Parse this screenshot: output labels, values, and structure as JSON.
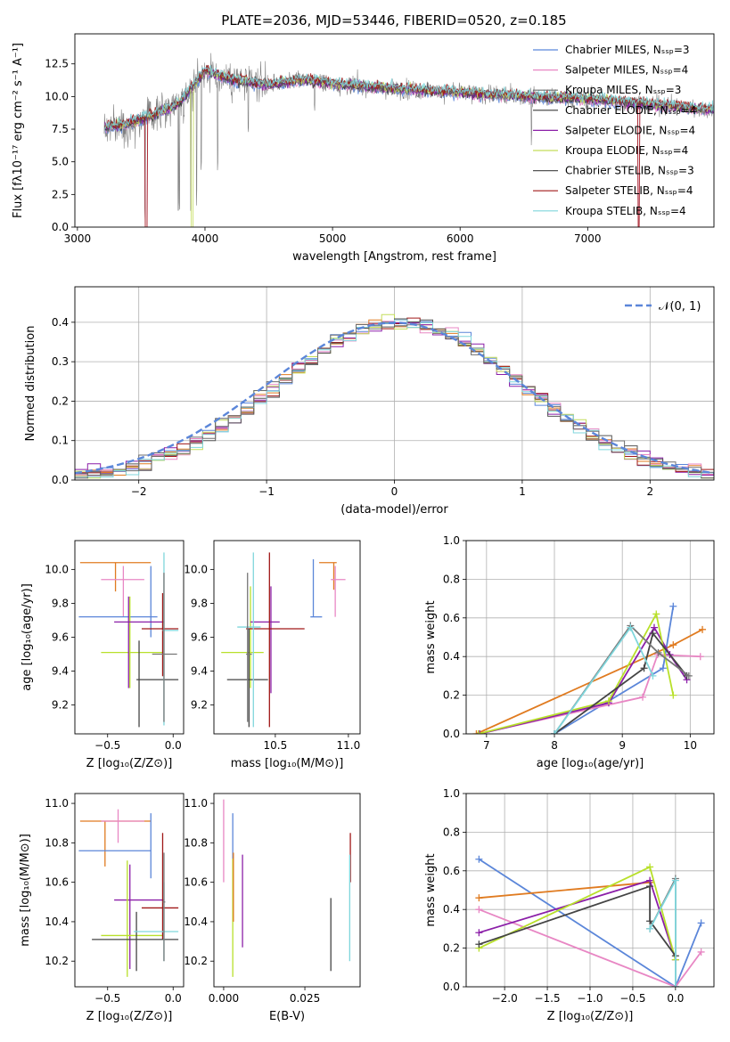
{
  "figure": {
    "title": "PLATE=2036, MJD=53446, FIBERID=0520, z=0.185"
  },
  "colors": {
    "s0": "#5b86d9",
    "s1": "#e887c4",
    "s2": "#6f6f6f",
    "s3": "#3a3a3a",
    "s4": "#8b1fa8",
    "s5": "#c4dd5a",
    "s6": "#555555",
    "s7": "#a01818",
    "s8": "#7fd6dc",
    "orange": "#e07b20",
    "blue": "#5b86d9",
    "pink": "#e887c4",
    "purple": "#8b1fa8",
    "lime": "#b8e02a",
    "cyan": "#7fd6dc",
    "dark": "#444444",
    "red": "#a01818",
    "grey": "#777777"
  },
  "chart_data": [
    {
      "id": "spectrum",
      "type": "line",
      "title": "PLATE=2036, MJD=53446, FIBERID=0520, z=0.185",
      "xlabel": "wavelength [Angstrom, rest frame]",
      "ylabel": "Flux [fλ10⁻¹⁷ erg cm⁻² s⁻¹ A⁻¹]",
      "xlim": [
        2980,
        7990
      ],
      "ylim": [
        0,
        14.8
      ],
      "xticks": [
        3000,
        4000,
        5000,
        6000,
        7000
      ],
      "yticks": [
        0.0,
        2.5,
        5.0,
        7.5,
        10.0,
        12.5
      ],
      "legend_position": "upper-right",
      "legend": [
        "Chabrier MILES, Nₛₛₚ=3",
        "Salpeter MILES, Nₛₛₚ=4",
        "Kroupa MILES, Nₛₛₚ=3",
        "Chabrier ELODIE, Nₛₛₚ=4",
        "Salpeter ELODIE, Nₛₛₚ=4",
        "Kroupa ELODIE, Nₛₛₚ=4",
        "Chabrier STELIB, Nₛₛₚ=3",
        "Salpeter STELIB, Nₛₛₚ=4",
        "Kroupa STELIB, Nₛₛₚ=4"
      ],
      "wavelength_range": [
        3210,
        7985
      ],
      "continuum": [
        [
          3210,
          7.6
        ],
        [
          3400,
          7.9
        ],
        [
          3600,
          8.6
        ],
        [
          3800,
          9.5
        ],
        [
          4000,
          12.0
        ],
        [
          4200,
          11.3
        ],
        [
          4500,
          10.9
        ],
        [
          4800,
          11.3
        ],
        [
          5000,
          11.0
        ],
        [
          5500,
          10.6
        ],
        [
          6000,
          10.3
        ],
        [
          6500,
          10.0
        ],
        [
          7000,
          9.8
        ],
        [
          7500,
          9.4
        ],
        [
          7985,
          9.0
        ]
      ]
    },
    {
      "id": "residuals",
      "type": "histogram",
      "xlabel": "(data-model)/error",
      "ylabel": "Normed distribution",
      "xlim": [
        -2.5,
        2.5
      ],
      "ylim": [
        0,
        0.49
      ],
      "xticks": [
        -2,
        -1,
        0,
        1,
        2
      ],
      "yticks": [
        0.0,
        0.1,
        0.2,
        0.3,
        0.4
      ],
      "legend": [
        "𝒩(0, 1)"
      ],
      "legend_position": "upper-right",
      "grid": true,
      "bin_width": 0.1
    },
    {
      "id": "age-vs-Z",
      "type": "errorbar",
      "xlabel": "Z [log₁₀(Z/Z⊙)]",
      "ylabel": "age  [log₁₀(age/yr)]",
      "xlim": [
        -0.75,
        0.08
      ],
      "ylim": [
        9.03,
        10.17
      ],
      "xticks": [
        -0.5,
        0.0
      ],
      "yticks": [
        9.2,
        9.4,
        9.6,
        9.8,
        10.0
      ],
      "points": [
        {
          "c": "orange",
          "x": -0.44,
          "y": 10.04,
          "xe": [
            -0.71,
            -0.17
          ],
          "ye": [
            9.87,
            10.04
          ]
        },
        {
          "c": "pink",
          "x": -0.38,
          "y": 9.94,
          "xe": [
            -0.55,
            -0.22
          ],
          "ye": [
            9.72,
            10.02
          ]
        },
        {
          "c": "blue",
          "x": -0.17,
          "y": 9.72,
          "xe": [
            -0.72,
            -0.12
          ],
          "ye": [
            9.6,
            10.02
          ]
        },
        {
          "c": "lime",
          "x": -0.33,
          "y": 9.51,
          "xe": [
            -0.55,
            -0.08
          ],
          "ye": [
            9.3,
            9.84
          ]
        },
        {
          "c": "purple",
          "x": -0.34,
          "y": 9.69,
          "xe": [
            -0.45,
            -0.07
          ],
          "ye": [
            9.3,
            9.84
          ]
        },
        {
          "c": "red",
          "x": -0.08,
          "y": 9.65,
          "xe": [
            -0.24,
            0.04
          ],
          "ye": [
            9.37,
            9.86
          ]
        },
        {
          "c": "dark",
          "x": -0.26,
          "y": 9.35,
          "xe": [
            -0.28,
            0.04
          ],
          "ye": [
            9.07,
            9.58
          ]
        },
        {
          "c": "cyan",
          "x": -0.07,
          "y": 9.64,
          "xe": [
            -0.08,
            0.04
          ],
          "ye": [
            9.08,
            10.1
          ]
        },
        {
          "c": "grey",
          "x": -0.07,
          "y": 9.5,
          "xe": [
            -0.16,
            0.03
          ],
          "ye": [
            9.1,
            9.98
          ]
        }
      ]
    },
    {
      "id": "age-vs-mass",
      "type": "errorbar",
      "xlabel": "mass [log₁₀(M/M⊙)]",
      "ylabel": "",
      "xlim": [
        10.08,
        11.08
      ],
      "ylim": [
        9.03,
        10.17
      ],
      "xticks": [
        10.5,
        11.0
      ],
      "yticks": [
        9.2,
        9.4,
        9.6,
        9.8,
        10.0
      ],
      "points": [
        {
          "c": "orange",
          "x": 10.9,
          "y": 10.04,
          "xe": [
            10.8,
            10.92
          ],
          "ye": [
            9.88,
            10.04
          ]
        },
        {
          "c": "pink",
          "x": 10.91,
          "y": 9.94,
          "xe": [
            10.88,
            10.98
          ],
          "ye": [
            9.72,
            10.02
          ]
        },
        {
          "c": "blue",
          "x": 10.76,
          "y": 9.72,
          "xe": [
            10.74,
            10.82
          ],
          "ye": [
            9.72,
            10.06
          ]
        },
        {
          "c": "lime",
          "x": 10.33,
          "y": 9.51,
          "xe": [
            10.13,
            10.42
          ],
          "ye": [
            9.3,
            9.9
          ]
        },
        {
          "c": "purple",
          "x": 10.47,
          "y": 9.69,
          "xe": [
            10.33,
            10.53
          ],
          "ye": [
            9.27,
            9.9
          ]
        },
        {
          "c": "red",
          "x": 10.46,
          "y": 9.65,
          "xe": [
            10.3,
            10.7
          ],
          "ye": [
            9.07,
            10.1
          ]
        },
        {
          "c": "dark",
          "x": 10.32,
          "y": 9.35,
          "xe": [
            10.17,
            10.45
          ],
          "ye": [
            9.07,
            9.65
          ]
        },
        {
          "c": "cyan",
          "x": 10.35,
          "y": 9.66,
          "xe": [
            10.24,
            10.4
          ],
          "ye": [
            9.07,
            10.1
          ]
        },
        {
          "c": "grey",
          "x": 10.31,
          "y": 9.5,
          "xe": [
            10.3,
            10.34
          ],
          "ye": [
            9.1,
            9.98
          ]
        }
      ]
    },
    {
      "id": "weight-vs-age",
      "type": "line",
      "xlabel": "age  [log₁₀(age/yr)]",
      "ylabel": "mass weight",
      "xlim": [
        6.7,
        10.35
      ],
      "ylim": [
        0.0,
        1.0
      ],
      "xticks": [
        7,
        8,
        9,
        10
      ],
      "yticks": [
        0.0,
        0.2,
        0.4,
        0.6,
        0.8,
        1.0
      ],
      "grid": true,
      "series": [
        {
          "c": "orange",
          "points": [
            [
              6.85,
              0.0
            ],
            [
              9.75,
              0.46
            ],
            [
              10.18,
              0.54
            ]
          ]
        },
        {
          "c": "blue",
          "points": [
            [
              8.0,
              0.0
            ],
            [
              9.6,
              0.34
            ],
            [
              9.75,
              0.66
            ]
          ]
        },
        {
          "c": "pink",
          "points": [
            [
              6.88,
              0.0
            ],
            [
              9.3,
              0.19
            ],
            [
              9.52,
              0.41
            ],
            [
              10.15,
              0.4
            ]
          ]
        },
        {
          "c": "purple",
          "points": [
            [
              6.9,
              0.0
            ],
            [
              8.8,
              0.16
            ],
            [
              9.47,
              0.55
            ],
            [
              9.7,
              0.41
            ],
            [
              9.95,
              0.28
            ]
          ]
        },
        {
          "c": "lime",
          "points": [
            [
              6.88,
              0.0
            ],
            [
              8.8,
              0.17
            ],
            [
              9.5,
              0.62
            ],
            [
              9.75,
              0.2
            ]
          ]
        },
        {
          "c": "dark",
          "points": [
            [
              8.0,
              0.0
            ],
            [
              9.32,
              0.34
            ],
            [
              9.45,
              0.52
            ],
            [
              9.95,
              0.3
            ]
          ]
        },
        {
          "c": "grey",
          "points": [
            [
              8.0,
              0.0
            ],
            [
              9.12,
              0.56
            ],
            [
              9.53,
              0.42
            ],
            [
              9.98,
              0.3
            ]
          ]
        },
        {
          "c": "cyan",
          "points": [
            [
              8.0,
              0.0
            ],
            [
              9.12,
              0.55
            ],
            [
              9.45,
              0.3
            ]
          ]
        }
      ]
    },
    {
      "id": "mass-vs-Z",
      "type": "errorbar",
      "xlabel": "Z [log₁₀(Z/Z⊙)]",
      "ylabel": "mass [log₁₀(M/M⊙)]",
      "xlim": [
        -0.75,
        0.08
      ],
      "ylim": [
        10.07,
        11.05
      ],
      "xticks": [
        -0.5,
        0.0
      ],
      "yticks": [
        10.2,
        10.4,
        10.6,
        10.8,
        11.0
      ],
      "points": [
        {
          "c": "orange",
          "x": -0.52,
          "y": 10.91,
          "xe": [
            -0.71,
            -0.17
          ],
          "ye": [
            10.68,
            10.91
          ]
        },
        {
          "c": "pink",
          "x": -0.42,
          "y": 10.91,
          "xe": [
            -0.55,
            -0.22
          ],
          "ye": [
            10.8,
            10.97
          ]
        },
        {
          "c": "blue",
          "x": -0.17,
          "y": 10.76,
          "xe": [
            -0.72,
            -0.17
          ],
          "ye": [
            10.62,
            10.95
          ]
        },
        {
          "c": "purple",
          "x": -0.33,
          "y": 10.51,
          "xe": [
            -0.45,
            -0.07
          ],
          "ye": [
            10.16,
            10.69
          ]
        },
        {
          "c": "lime",
          "x": -0.35,
          "y": 10.33,
          "xe": [
            -0.55,
            -0.08
          ],
          "ye": [
            10.12,
            10.71
          ]
        },
        {
          "c": "red",
          "x": -0.08,
          "y": 10.47,
          "xe": [
            -0.24,
            0.04
          ],
          "ye": [
            10.31,
            10.85
          ]
        },
        {
          "c": "dark",
          "x": -0.28,
          "y": 10.31,
          "xe": [
            -0.62,
            0.04
          ],
          "ye": [
            10.15,
            10.45
          ]
        },
        {
          "c": "cyan",
          "x": -0.07,
          "y": 10.35,
          "xe": [
            -0.3,
            0.04
          ],
          "ye": [
            10.2,
            10.6
          ]
        },
        {
          "c": "grey",
          "x": -0.07,
          "y": 10.5,
          "xe": [
            -0.08,
            -0.06
          ],
          "ye": [
            10.2,
            10.75
          ]
        }
      ]
    },
    {
      "id": "mass-vs-EBV",
      "type": "errorbar",
      "xlabel": "E(B-V)",
      "ylabel": "",
      "xlim": [
        -0.003,
        0.042
      ],
      "ylim": [
        10.07,
        11.05
      ],
      "xticks": [
        0.0,
        0.025
      ],
      "yticks": [
        10.2,
        10.4,
        10.6,
        10.8,
        11.0
      ],
      "tick_labels_x": [
        "0.000",
        "0.025"
      ],
      "bars": [
        {
          "c": "pink",
          "x": 0.0,
          "ye": [
            10.6,
            11.02
          ]
        },
        {
          "c": "blue",
          "x": 0.0028,
          "ye": [
            10.65,
            10.95
          ]
        },
        {
          "c": "lime",
          "x": 0.0028,
          "ye": [
            10.12,
            10.72
          ]
        },
        {
          "c": "orange",
          "x": 0.003,
          "ye": [
            10.4,
            10.75
          ]
        },
        {
          "c": "purple",
          "x": 0.0058,
          "ye": [
            10.27,
            10.74
          ]
        },
        {
          "c": "dark",
          "x": 0.033,
          "ye": [
            10.15,
            10.52
          ]
        },
        {
          "c": "red",
          "x": 0.039,
          "ye": [
            10.6,
            10.85
          ]
        },
        {
          "c": "cyan",
          "x": 0.0388,
          "ye": [
            10.2,
            10.74
          ]
        }
      ]
    },
    {
      "id": "weight-vs-Z",
      "type": "line",
      "xlabel": "Z [log₁₀(Z/Z⊙)]",
      "ylabel": "mass weight",
      "xlim": [
        -2.45,
        0.45
      ],
      "ylim": [
        0.0,
        1.0
      ],
      "xticks": [
        -2.0,
        -1.5,
        -1.0,
        -0.5,
        0.0
      ],
      "yticks": [
        0.0,
        0.2,
        0.4,
        0.6,
        0.8,
        1.0
      ],
      "grid": true,
      "series": [
        {
          "c": "blue",
          "points": [
            [
              -2.3,
              0.66
            ],
            [
              0.0,
              0.0
            ],
            [
              0.3,
              0.33
            ]
          ]
        },
        {
          "c": "orange",
          "points": [
            [
              -2.3,
              0.46
            ],
            [
              -0.3,
              0.54
            ]
          ]
        },
        {
          "c": "pink",
          "points": [
            [
              -2.3,
              0.4
            ],
            [
              0.0,
              0.0
            ],
            [
              0.3,
              0.18
            ]
          ]
        },
        {
          "c": "purple",
          "points": [
            [
              -2.3,
              0.28
            ],
            [
              -0.3,
              0.55
            ],
            [
              0.0,
              0.14
            ]
          ]
        },
        {
          "c": "lime",
          "points": [
            [
              -2.3,
              0.2
            ],
            [
              -0.3,
              0.62
            ],
            [
              0.0,
              0.14
            ]
          ]
        },
        {
          "c": "dark",
          "points": [
            [
              -2.3,
              0.22
            ],
            [
              -0.3,
              0.52
            ],
            [
              -0.3,
              0.34
            ],
            [
              0.0,
              0.16
            ]
          ]
        },
        {
          "c": "grey",
          "points": [
            [
              -0.3,
              0.3
            ],
            [
              0.0,
              0.56
            ],
            [
              0.0,
              0.0
            ]
          ]
        },
        {
          "c": "cyan",
          "points": [
            [
              -0.3,
              0.3
            ],
            [
              0.0,
              0.55
            ],
            [
              0.0,
              0.0
            ]
          ]
        }
      ]
    }
  ]
}
